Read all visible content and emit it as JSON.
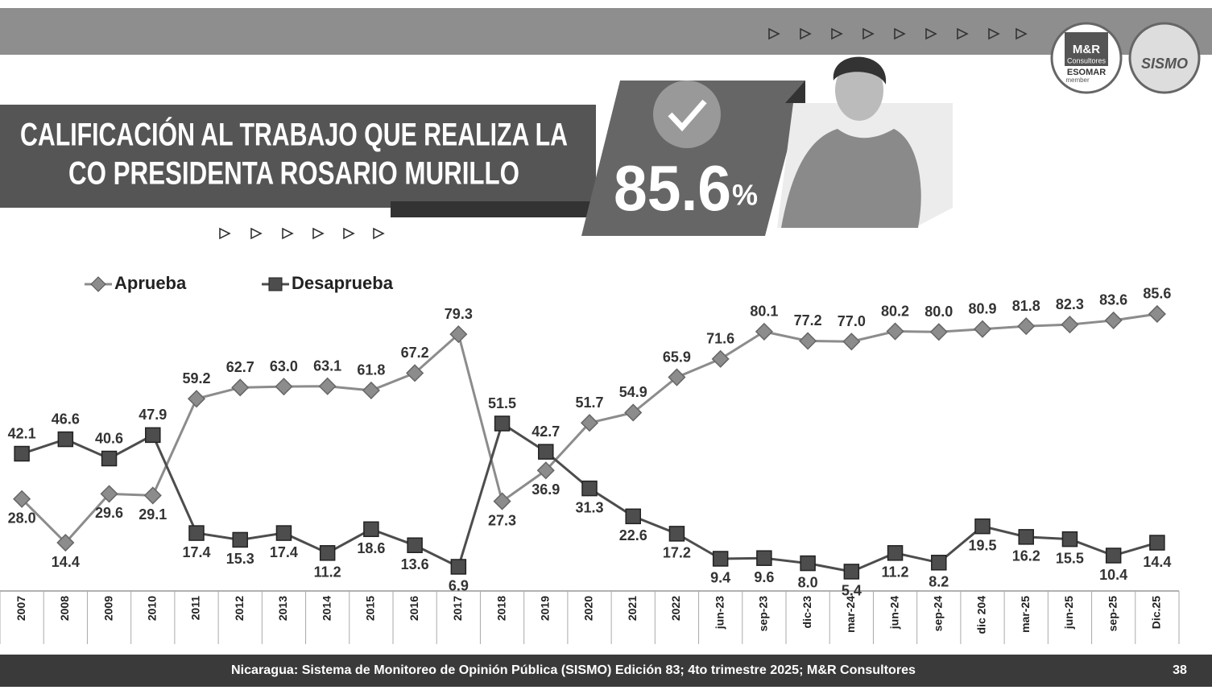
{
  "header": {
    "title_line1": "CALIFICACIÓN AL TRABAJO QUE REALIZA LA",
    "title_line2": "CO PRESIDENTA ROSARIO MURILLO",
    "badge_value": "85.6",
    "badge_unit": "%"
  },
  "logos": {
    "mr": "M&R",
    "mr_sub": "Consultores",
    "esomar": "ESOMAR",
    "member": "member",
    "sismo": "SISMO"
  },
  "footer": {
    "source": "Nicaragua: Sistema de Monitoreo de Opinión Pública (SISMO) Edición 83; 4to trimestre 2025; M&R Consultores",
    "page": "38"
  },
  "chart_data": {
    "type": "line",
    "categories": [
      "2007",
      "2008",
      "2009",
      "2010",
      "2011",
      "2012",
      "2013",
      "2014",
      "2015",
      "2016",
      "2017",
      "2018",
      "2019",
      "2020",
      "2021",
      "2022",
      "jun-23",
      "sep-23",
      "dic-23",
      "mar-24",
      "jun-24",
      "sep-24",
      "dic 204",
      "mar-25",
      "jun-25",
      "sep-25",
      "Dic.25"
    ],
    "series": [
      {
        "name": "Aprueba",
        "color": "#8c8c8c",
        "marker": "diamond",
        "values": [
          28.0,
          14.4,
          29.6,
          29.1,
          59.2,
          62.7,
          63.0,
          63.1,
          61.8,
          67.2,
          79.3,
          27.3,
          36.9,
          51.7,
          54.9,
          65.9,
          71.6,
          80.1,
          77.2,
          77.0,
          80.2,
          80.0,
          80.9,
          81.8,
          82.3,
          83.6,
          85.6
        ],
        "value_labels": [
          "28.0",
          "14.4",
          "29.6",
          "29.1",
          "59.2",
          "62.7",
          "63.0",
          "63.1",
          "61.8",
          "67.2",
          "79.3",
          "27.3",
          "36.9",
          "51.7",
          "54.9",
          "65.9",
          "71.6",
          "80.1",
          "77.2",
          "77.0",
          "80.2",
          "80.0",
          "80.9",
          "81.8",
          "82.3",
          "83.6",
          "85.6"
        ]
      },
      {
        "name": "Desaprueba",
        "color": "#4d4d4d",
        "marker": "square",
        "values": [
          42.1,
          46.6,
          40.6,
          47.9,
          17.4,
          15.3,
          17.4,
          11.2,
          18.6,
          13.6,
          6.9,
          51.5,
          42.7,
          31.3,
          22.6,
          17.2,
          9.4,
          9.6,
          8.0,
          5.4,
          11.2,
          8.2,
          19.5,
          16.2,
          15.5,
          10.4,
          14.4
        ],
        "value_labels": [
          "42.1",
          "46.6",
          "40.6",
          "47.9",
          "17.4",
          "15.3",
          "17.4",
          "11.2",
          "18.6",
          "13.6",
          "6.9",
          "51.5",
          "42.7",
          "31.3",
          "22.6",
          "17.2",
          "9.4",
          "9.6",
          "8.0",
          "5.4",
          "11.2",
          "8.2",
          "19.5",
          "16.2",
          "15.5",
          "10.4",
          "14.4"
        ]
      }
    ],
    "ylim": [
      0,
      90
    ]
  }
}
